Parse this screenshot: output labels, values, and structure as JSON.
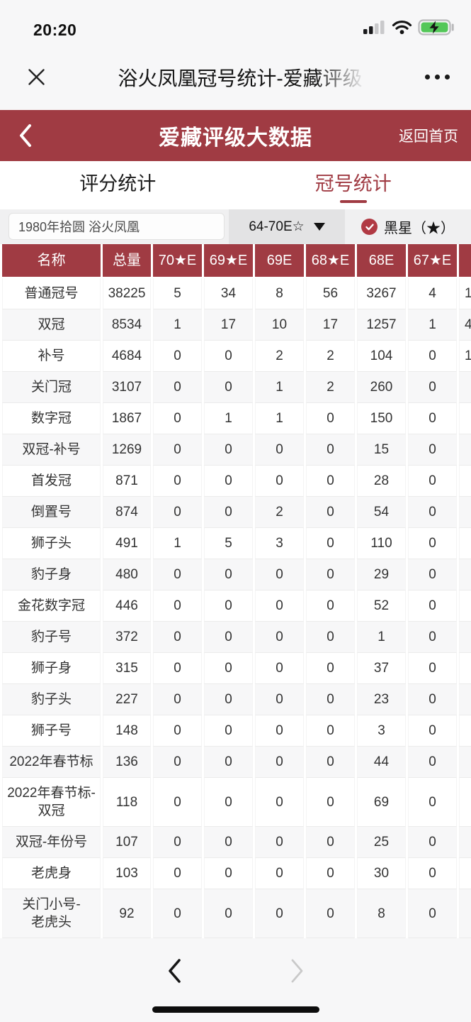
{
  "status_bar": {
    "time": "20:20"
  },
  "title_bar": {
    "title": "浴火凤凰冠号统计-爱藏评级"
  },
  "app_bar": {
    "title": "爱藏评级大数据",
    "home_link": "返回首页"
  },
  "tabs": {
    "score_label": "评分统计",
    "serial_label": "冠号统计",
    "active": "冠号统计"
  },
  "filters": {
    "series": "1980年拾圆 浴火凤凰",
    "grade_range": "64-70E☆",
    "star_option": "黑星（★）",
    "star_checked": true
  },
  "icons": {
    "close": "x-mark",
    "more": "ellipsis",
    "back": "chevron-left",
    "dropdown_caret": "triangle-down",
    "star_check": "checkmark-circle",
    "prev": "chevron-left",
    "next": "chevron-right",
    "signal": "cellular-bars-2-of-4",
    "wifi": "wifi-full",
    "battery": "battery-charging"
  },
  "colors": {
    "accent_red": "#A03B43",
    "check_red": "#B13A44",
    "battery_green": "#53C758",
    "page_bg": "#F7F7F8",
    "dropdown_bg": "#E3E3E4"
  },
  "table": {
    "headers": [
      "名称",
      "总量",
      "70★E",
      "69★E",
      "69E",
      "68★E",
      "68E",
      "67★E"
    ],
    "clipped_column": true,
    "rows": [
      {
        "name": "普通冠号",
        "total": "38225",
        "values": [
          "5",
          "34",
          "8",
          "56",
          "3267",
          "4"
        ],
        "partial": "1"
      },
      {
        "name": "双冠",
        "total": "8534",
        "values": [
          "1",
          "17",
          "10",
          "17",
          "1257",
          "1"
        ],
        "partial": "4"
      },
      {
        "name": "补号",
        "total": "4684",
        "values": [
          "0",
          "0",
          "2",
          "2",
          "104",
          "0"
        ],
        "partial": "1"
      },
      {
        "name": "关门冠",
        "total": "3107",
        "values": [
          "0",
          "0",
          "1",
          "2",
          "260",
          "0"
        ],
        "partial": ""
      },
      {
        "name": "数字冠",
        "total": "1867",
        "values": [
          "0",
          "1",
          "1",
          "0",
          "150",
          "0"
        ],
        "partial": ""
      },
      {
        "name": "双冠-补号",
        "total": "1269",
        "values": [
          "0",
          "0",
          "0",
          "0",
          "15",
          "0"
        ],
        "partial": ""
      },
      {
        "name": "首发冠",
        "total": "871",
        "values": [
          "0",
          "0",
          "0",
          "0",
          "28",
          "0"
        ],
        "partial": ""
      },
      {
        "name": "倒置号",
        "total": "874",
        "values": [
          "0",
          "0",
          "2",
          "0",
          "54",
          "0"
        ],
        "partial": ""
      },
      {
        "name": "狮子头",
        "total": "491",
        "values": [
          "1",
          "5",
          "3",
          "0",
          "110",
          "0"
        ],
        "partial": ""
      },
      {
        "name": "豹子身",
        "total": "480",
        "values": [
          "0",
          "0",
          "0",
          "0",
          "29",
          "0"
        ],
        "partial": ""
      },
      {
        "name": "金花数字冠",
        "total": "446",
        "values": [
          "0",
          "0",
          "0",
          "0",
          "52",
          "0"
        ],
        "partial": ""
      },
      {
        "name": "豹子号",
        "total": "372",
        "values": [
          "0",
          "0",
          "0",
          "0",
          "1",
          "0"
        ],
        "partial": ""
      },
      {
        "name": "狮子身",
        "total": "315",
        "values": [
          "0",
          "0",
          "0",
          "0",
          "37",
          "0"
        ],
        "partial": ""
      },
      {
        "name": "豹子头",
        "total": "227",
        "values": [
          "0",
          "0",
          "0",
          "0",
          "23",
          "0"
        ],
        "partial": ""
      },
      {
        "name": "狮子号",
        "total": "148",
        "values": [
          "0",
          "0",
          "0",
          "0",
          "3",
          "0"
        ],
        "partial": ""
      },
      {
        "name": "2022年春节标",
        "total": "136",
        "values": [
          "0",
          "0",
          "0",
          "0",
          "44",
          "0"
        ],
        "partial": ""
      },
      {
        "name": "2022年春节标-双冠",
        "total": "118",
        "values": [
          "0",
          "0",
          "0",
          "0",
          "69",
          "0"
        ],
        "partial": ""
      },
      {
        "name": "双冠-年份号",
        "total": "107",
        "values": [
          "0",
          "0",
          "0",
          "0",
          "25",
          "0"
        ],
        "partial": ""
      },
      {
        "name": "老虎身",
        "total": "103",
        "values": [
          "0",
          "0",
          "0",
          "0",
          "30",
          "0"
        ],
        "partial": ""
      },
      {
        "name": "关门小号-老虎头",
        "total": "92",
        "values": [
          "0",
          "0",
          "0",
          "0",
          "8",
          "0"
        ],
        "partial": ""
      }
    ]
  }
}
